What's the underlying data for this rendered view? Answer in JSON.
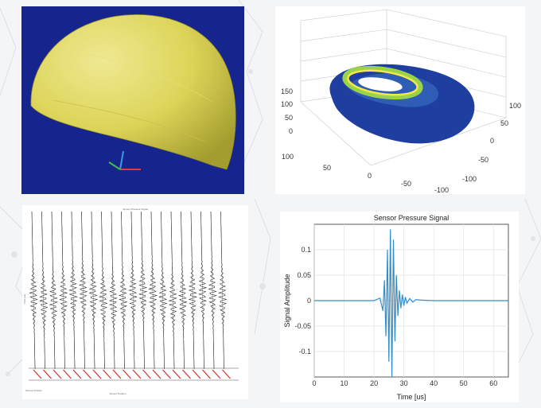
{
  "colors": {
    "helmet_bg": "#16248e",
    "helmet_fill": "#e8e06a",
    "ring_green": "#9ad24a",
    "ring_yellow": "#f2e84a",
    "cloud_blue": "#1f3fa0",
    "waveform_black": "#222222",
    "sensor_red": "#d42a2a",
    "signal_blue": "#2f8fce"
  },
  "panels": {
    "helmet": {
      "content": "3D helmet surface model with xyz axis triad",
      "icon": "axes-triad-icon"
    },
    "surface3d": {
      "z_ticks": [
        "150",
        "100",
        "50",
        "0"
      ],
      "y_ticks_right": [
        "100",
        "50",
        "0",
        "-50",
        "-100"
      ],
      "x_ticks_front": [
        "100",
        "50",
        "0",
        "-50",
        "-100"
      ]
    },
    "waveforms": {
      "title": "Sensor Pressure Signal",
      "ylabel": "Time [us]",
      "xlabel": "Sensor Position",
      "corner_label": "Sensor Position",
      "num_channels": 20
    }
  },
  "chart_data": [
    {
      "type": "line",
      "title": "Sensor Pressure Signal",
      "xlabel": "Time [us]",
      "ylabel": "Signal Amplitude",
      "xlim": [
        0,
        65
      ],
      "ylim": [
        -0.15,
        0.15
      ],
      "x_ticks": [
        "0",
        "10",
        "20",
        "30",
        "40",
        "50",
        "60"
      ],
      "y_ticks": [
        "0.1",
        "0.05",
        "0",
        "-0.05",
        "-0.1"
      ],
      "grid": true,
      "series": [
        {
          "x": [
            0,
            20,
            22,
            23,
            23.5,
            24,
            24.5,
            25,
            25.5,
            26,
            26.5,
            27,
            27.5,
            28,
            28.5,
            29,
            29.5,
            30,
            30.5,
            31,
            32,
            33,
            34,
            36,
            40,
            65
          ],
          "y": [
            0,
            0,
            0.005,
            -0.02,
            0.04,
            -0.07,
            0.1,
            -0.12,
            0.14,
            -0.15,
            0.12,
            -0.08,
            0.05,
            -0.03,
            0.02,
            -0.015,
            0.012,
            -0.01,
            0.007,
            -0.005,
            0.004,
            -0.003,
            0.002,
            0.001,
            0,
            0
          ]
        }
      ]
    }
  ]
}
